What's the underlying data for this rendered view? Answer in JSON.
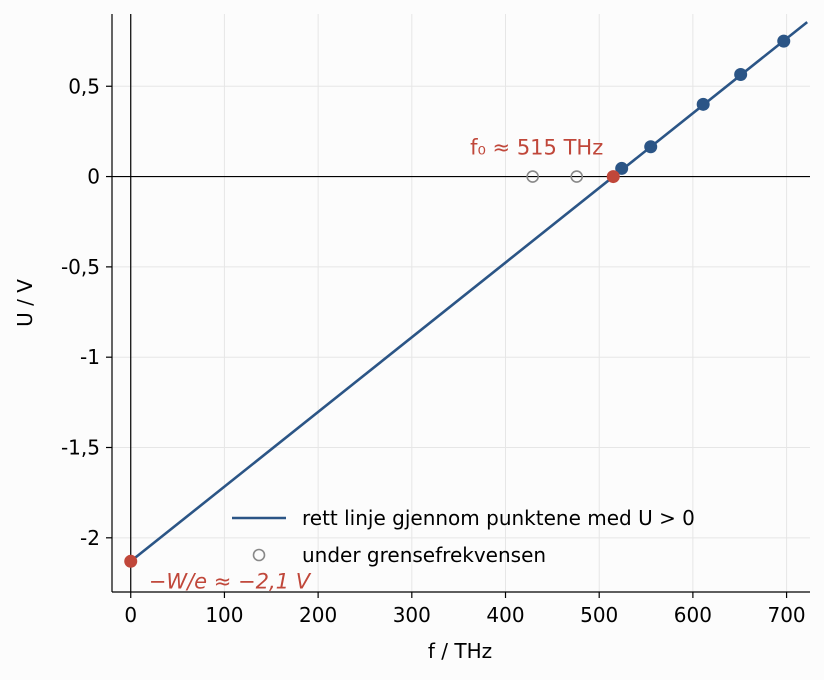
{
  "chart_data": {
    "type": "line",
    "title": "",
    "xlabel": "f / THz",
    "ylabel": "U / V",
    "xlim": [
      -20,
      725
    ],
    "ylim": [
      -2.3,
      0.9
    ],
    "grid": true,
    "x_ticks": [
      0,
      100,
      200,
      300,
      400,
      500,
      600,
      700
    ],
    "x_tick_labels": [
      "0",
      "100",
      "200",
      "300",
      "400",
      "500",
      "600",
      "700"
    ],
    "y_ticks": [
      0.5,
      0,
      -0.5,
      -1,
      -1.5,
      -2
    ],
    "y_tick_labels": [
      "0,5",
      "0",
      "-0,5",
      "-1",
      "-1,5",
      "-2"
    ],
    "legend_position": "bottom-right",
    "series": [
      {
        "name": "rett linje gjennom punktene med U > 0",
        "kind": "line",
        "color": "#2b5586",
        "x": [
          0,
          722
        ],
        "y": [
          -2.13,
          0.855
        ]
      },
      {
        "name": "",
        "kind": "points",
        "color": "#2b5586",
        "x": [
          524,
          555,
          611,
          651,
          697
        ],
        "y": [
          0.045,
          0.165,
          0.4,
          0.565,
          0.75
        ]
      },
      {
        "name": "under grensefrekvensen",
        "kind": "open-points",
        "color": "#888888",
        "x": [
          429,
          476
        ],
        "y": [
          0,
          0
        ]
      },
      {
        "name": "",
        "kind": "highlight-points",
        "color": "#c0473a",
        "x": [
          515,
          0
        ],
        "y": [
          0,
          -2.13
        ]
      }
    ],
    "annotations": [
      {
        "text": "f₀ ≈ 515 THz",
        "x": 515,
        "y": 0,
        "color": "#c0473a"
      },
      {
        "text": "−W/e ≈ −2,1 V",
        "x": 0,
        "y": -2.13,
        "color": "#c0473a"
      }
    ]
  }
}
